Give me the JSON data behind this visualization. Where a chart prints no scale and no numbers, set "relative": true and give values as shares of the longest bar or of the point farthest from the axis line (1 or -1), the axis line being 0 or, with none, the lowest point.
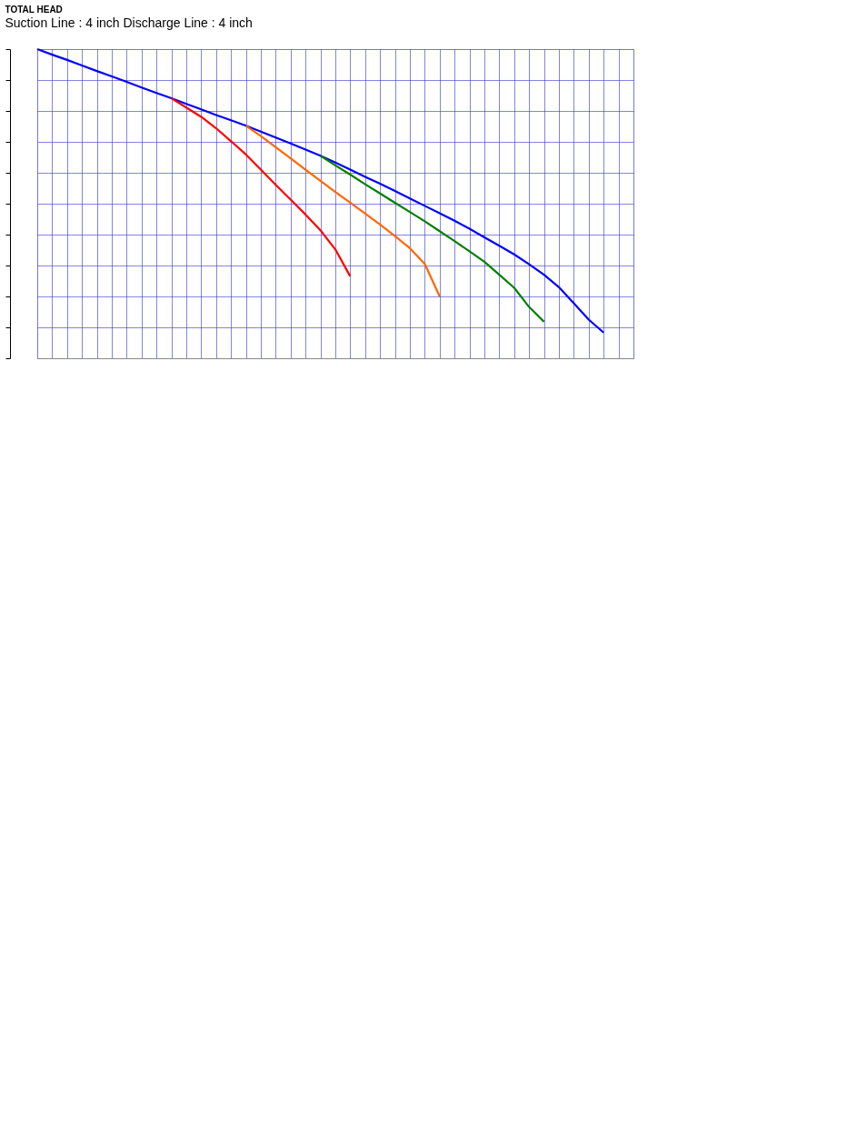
{
  "chart_data": {
    "type": "line",
    "title": "TOTAL HEAD",
    "subtitle": "Suction  Line : 4 inch   Discharge Line : 4 inch",
    "relative": true,
    "grid": true,
    "legend": false,
    "marker": "none",
    "line_style": "solid",
    "categories": [
      null,
      null,
      null,
      null,
      null,
      null,
      null,
      null,
      null,
      null,
      null,
      null,
      null,
      null,
      null,
      null,
      null,
      null,
      null,
      null,
      null,
      null,
      null,
      null,
      null,
      null,
      null,
      null,
      null,
      null,
      null,
      null,
      null,
      null,
      null,
      null,
      null,
      null,
      null,
      null,
      null
    ],
    "series": [
      {
        "color": "#0000ff",
        "values": [
          1.0,
          0.982,
          0.965,
          0.947,
          0.929,
          0.912,
          0.894,
          0.876,
          0.858,
          0.841,
          0.823,
          0.805,
          0.787,
          0.77,
          0.752,
          0.733,
          0.714,
          0.695,
          0.675,
          0.655,
          0.633,
          0.61,
          0.587,
          0.565,
          0.541,
          0.517,
          0.493,
          0.469,
          0.445,
          0.419,
          0.391,
          0.364,
          0.336,
          0.304,
          0.27,
          0.23,
          0.178,
          0.125,
          0.083,
          null,
          null
        ]
      },
      {
        "color": "#ff0000",
        "values": [
          null,
          null,
          null,
          null,
          null,
          null,
          null,
          null,
          null,
          0.841,
          0.811,
          0.781,
          0.744,
          0.702,
          0.659,
          0.61,
          0.561,
          0.513,
          0.465,
          0.414,
          0.352,
          0.265,
          null,
          null,
          null,
          null,
          null,
          null,
          null,
          null,
          null,
          null,
          null,
          null,
          null,
          null,
          null,
          null,
          null,
          null,
          null
        ]
      },
      {
        "color": "#ff6600",
        "values": [
          null,
          null,
          null,
          null,
          null,
          null,
          null,
          null,
          null,
          null,
          null,
          null,
          null,
          null,
          0.752,
          0.719,
          0.683,
          0.647,
          0.61,
          0.574,
          0.538,
          0.503,
          0.468,
          0.433,
          0.395,
          0.356,
          0.305,
          0.2,
          null,
          null,
          null,
          null,
          null,
          null,
          null,
          null,
          null,
          null,
          null,
          null,
          null
        ]
      },
      {
        "color": "#008000",
        "values": [
          null,
          null,
          null,
          null,
          null,
          null,
          null,
          null,
          null,
          null,
          null,
          null,
          null,
          null,
          null,
          null,
          null,
          null,
          null,
          0.655,
          0.624,
          0.594,
          0.563,
          0.533,
          0.503,
          0.473,
          0.443,
          0.411,
          0.379,
          0.346,
          0.312,
          0.27,
          0.228,
          0.166,
          0.118,
          null,
          null,
          null,
          null,
          null,
          null
        ]
      }
    ]
  }
}
